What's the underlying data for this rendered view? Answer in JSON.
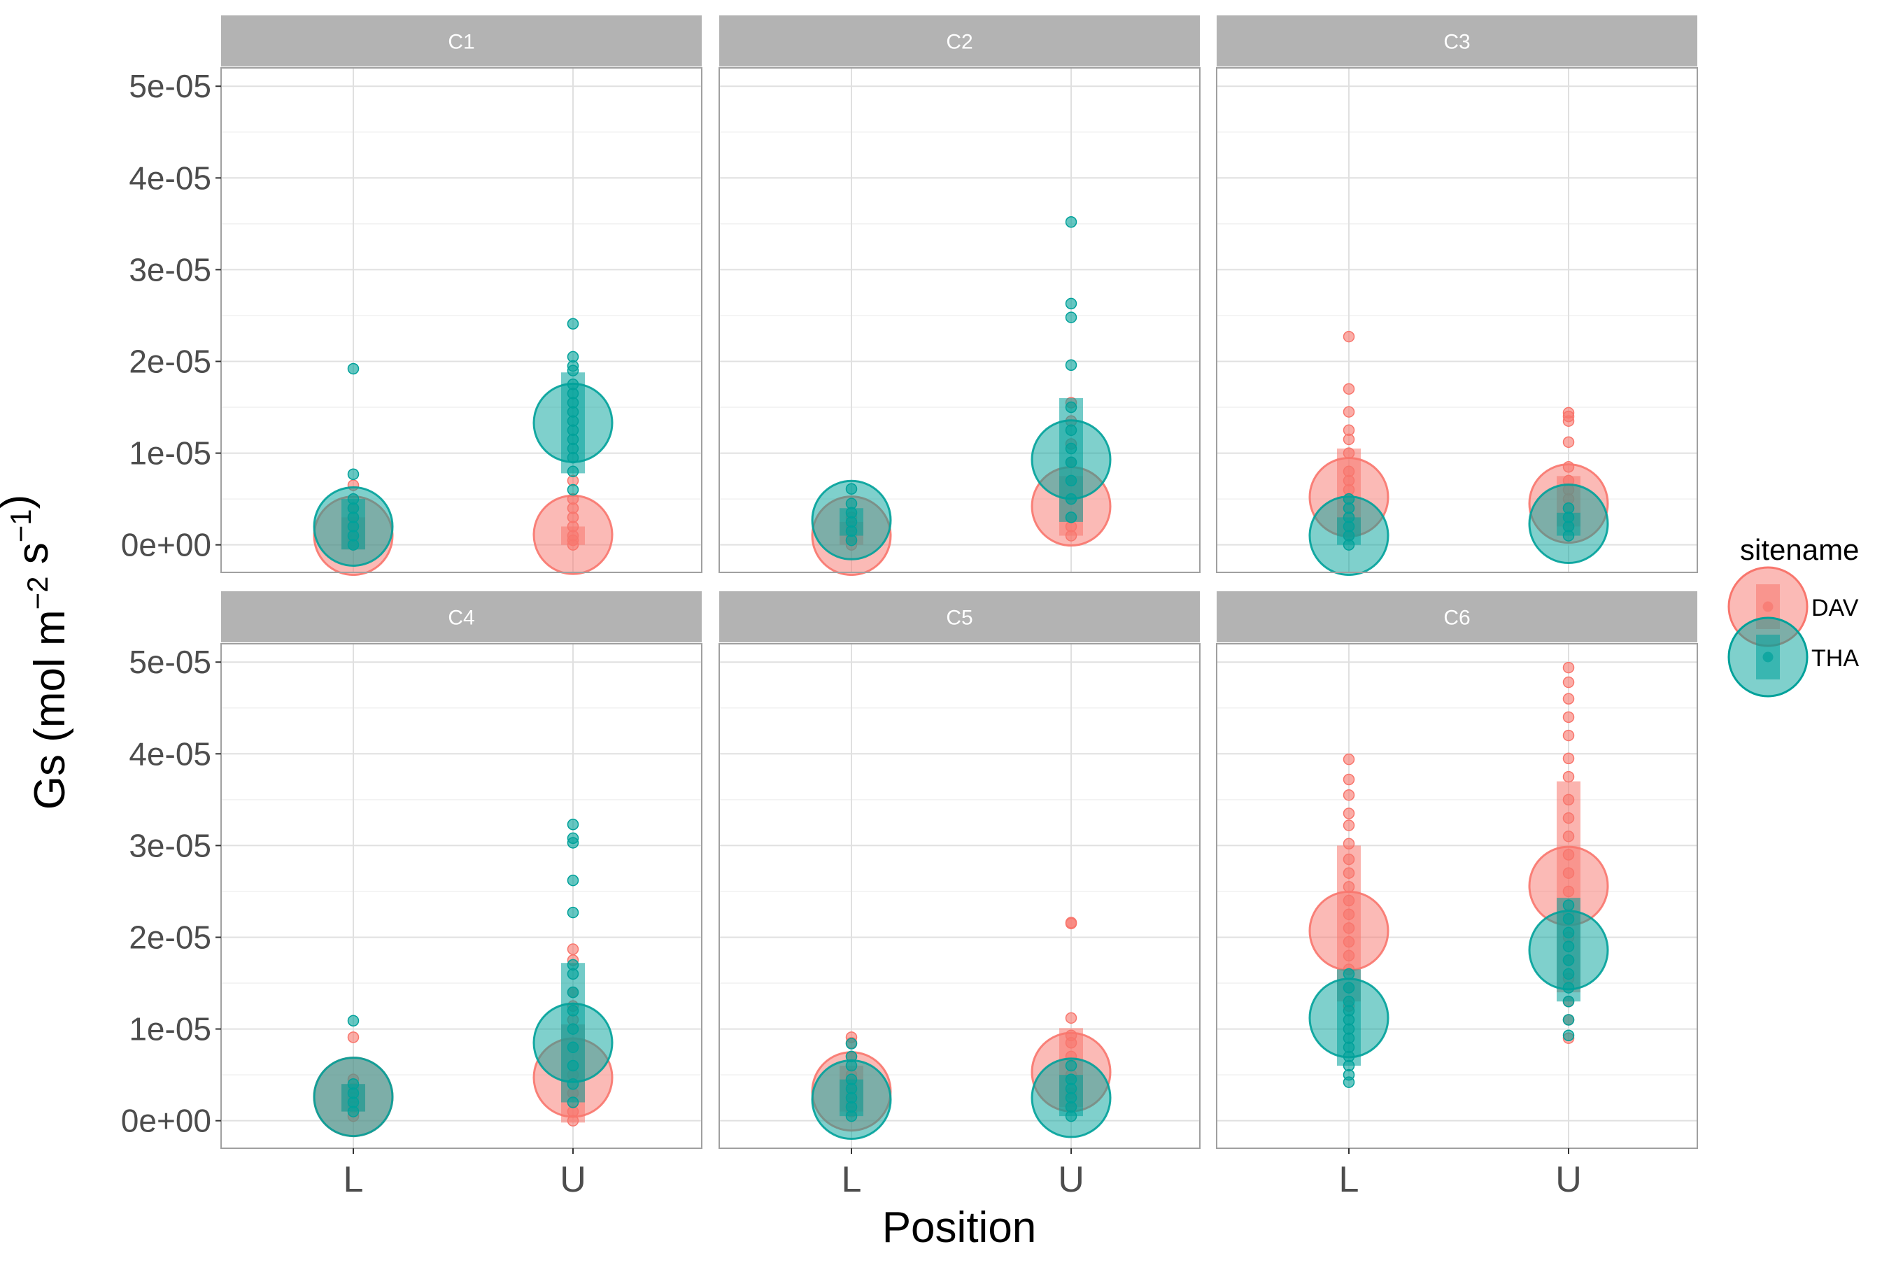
{
  "chart_data": {
    "type": "scatter",
    "facet_by": "panel",
    "panels": [
      "C1",
      "C2",
      "C3",
      "C4",
      "C5",
      "C6"
    ],
    "categories": [
      "L",
      "U"
    ],
    "xlabel": "Position",
    "ylabel": {
      "base": "Gs (mol m",
      "sup1": "−2",
      "mid": " s",
      "sup2": "−1",
      "end": ")"
    },
    "yticks": [
      0,
      1e-05,
      2e-05,
      3e-05,
      4e-05,
      5e-05
    ],
    "ytick_labels": [
      "0e+00",
      "1e-05",
      "2e-05",
      "3e-05",
      "4e-05",
      "5e-05"
    ],
    "ylim": [
      -3e-06,
      5.2e-05
    ],
    "grid": true,
    "legend": {
      "title": "sitename",
      "placement": "right",
      "entries": [
        "DAV",
        "THA"
      ]
    },
    "colors": {
      "DAV": "#F8766D",
      "THA": "#00A19A",
      "strip": "#b3b3b3",
      "grid": "#e0e0e0",
      "border": "#a0a0a0"
    },
    "series": [
      {
        "name": "DAV",
        "panel": "C1",
        "x": "L",
        "mean": 1e-06,
        "bar_low": -5e-07,
        "bar_high": 3e-06,
        "points": [
          0,
          5e-07,
          1e-06,
          2e-06,
          3e-06,
          4e-06,
          6.5e-06
        ]
      },
      {
        "name": "THA",
        "panel": "C1",
        "x": "L",
        "mean": 2e-06,
        "bar_low": -5e-07,
        "bar_high": 5e-06,
        "points": [
          0,
          1e-06,
          2e-06,
          3e-06,
          4e-06,
          5e-06,
          7.7e-06,
          1.92e-05
        ]
      },
      {
        "name": "DAV",
        "panel": "C1",
        "x": "U",
        "mean": 1.1e-06,
        "bar_low": 0,
        "bar_high": 2e-06,
        "points": [
          0,
          5e-07,
          1e-06,
          2e-06,
          3e-06,
          4e-06,
          5e-06,
          7e-06
        ]
      },
      {
        "name": "THA",
        "panel": "C1",
        "x": "U",
        "mean": 1.33e-05,
        "bar_low": 7.8e-06,
        "bar_high": 1.88e-05,
        "points": [
          6e-06,
          8e-06,
          9.5e-06,
          1.05e-05,
          1.15e-05,
          1.25e-05,
          1.35e-05,
          1.45e-05,
          1.55e-05,
          1.65e-05,
          1.75e-05,
          1.9e-05,
          1.95e-05,
          2.05e-05,
          2.41e-05
        ]
      },
      {
        "name": "DAV",
        "panel": "C2",
        "x": "L",
        "mean": 1e-06,
        "bar_low": 0,
        "bar_high": 2.5e-06,
        "points": [
          0,
          5e-07,
          1e-06,
          2e-06,
          3e-06
        ]
      },
      {
        "name": "THA",
        "panel": "C2",
        "x": "L",
        "mean": 2.7e-06,
        "bar_low": 1e-06,
        "bar_high": 4e-06,
        "points": [
          5e-07,
          1.5e-06,
          2.5e-06,
          3.5e-06,
          4.5e-06,
          6.1e-06
        ]
      },
      {
        "name": "DAV",
        "panel": "C2",
        "x": "U",
        "mean": 4.2e-06,
        "bar_low": 1e-06,
        "bar_high": 7.5e-06,
        "points": [
          1e-06,
          2e-06,
          3e-06,
          5e-06,
          7e-06,
          9e-06,
          1.1e-05,
          1.35e-05,
          1.55e-05
        ]
      },
      {
        "name": "THA",
        "panel": "C2",
        "x": "U",
        "mean": 9.3e-06,
        "bar_low": 2.5e-06,
        "bar_high": 1.6e-05,
        "points": [
          3e-06,
          5e-06,
          7e-06,
          9e-06,
          1.05e-05,
          1.25e-05,
          1.5e-05,
          1.96e-05,
          2.48e-05,
          2.63e-05,
          3.52e-05
        ]
      },
      {
        "name": "DAV",
        "panel": "C3",
        "x": "L",
        "mean": 5.2e-06,
        "bar_low": 1e-06,
        "bar_high": 1.05e-05,
        "points": [
          1e-06,
          2e-06,
          3e-06,
          4e-06,
          5e-06,
          6e-06,
          7e-06,
          8e-06,
          1e-05,
          1.15e-05,
          1.25e-05,
          1.45e-05,
          1.7e-05,
          2.27e-05
        ]
      },
      {
        "name": "THA",
        "panel": "C3",
        "x": "L",
        "mean": 1e-06,
        "bar_low": 0,
        "bar_high": 3e-06,
        "points": [
          0,
          1e-06,
          2e-06,
          3e-06,
          4e-06,
          5e-06
        ]
      },
      {
        "name": "DAV",
        "panel": "C3",
        "x": "U",
        "mean": 4.5e-06,
        "bar_low": 2e-06,
        "bar_high": 7.5e-06,
        "points": [
          2e-06,
          3e-06,
          4e-06,
          5e-06,
          6e-06,
          7e-06,
          8.5e-06,
          1.12e-05,
          1.35e-05,
          1.4e-05,
          1.44e-05
        ]
      },
      {
        "name": "THA",
        "panel": "C3",
        "x": "U",
        "mean": 2.3e-06,
        "bar_low": 1e-06,
        "bar_high": 3.5e-06,
        "points": [
          1e-06,
          2e-06,
          3e-06,
          4e-06
        ]
      },
      {
        "name": "DAV",
        "panel": "C4",
        "x": "L",
        "mean": 2.6e-06,
        "bar_low": 1e-06,
        "bar_high": 4e-06,
        "points": [
          5e-07,
          1.5e-06,
          2.5e-06,
          3.5e-06,
          4.5e-06,
          9.1e-06
        ]
      },
      {
        "name": "THA",
        "panel": "C4",
        "x": "L",
        "mean": 2.6e-06,
        "bar_low": 1e-06,
        "bar_high": 4e-06,
        "points": [
          1e-06,
          2e-06,
          3e-06,
          4e-06,
          1.09e-05
        ]
      },
      {
        "name": "DAV",
        "panel": "C4",
        "x": "U",
        "mean": 4.7e-06,
        "bar_low": -2e-07,
        "bar_high": 1.05e-05,
        "points": [
          0,
          1e-06,
          3e-06,
          5e-06,
          8e-06,
          1.1e-05,
          1.25e-05,
          1.4e-05,
          1.75e-05,
          1.87e-05
        ]
      },
      {
        "name": "THA",
        "panel": "C4",
        "x": "U",
        "mean": 8.5e-06,
        "bar_low": 2e-06,
        "bar_high": 1.72e-05,
        "points": [
          2e-06,
          4e-06,
          6e-06,
          8e-06,
          1e-05,
          1.2e-05,
          1.4e-05,
          1.6e-05,
          1.7e-05,
          2.27e-05,
          2.62e-05,
          3.03e-05,
          3.08e-05,
          3.23e-05
        ]
      },
      {
        "name": "DAV",
        "panel": "C5",
        "x": "L",
        "mean": 3.2e-06,
        "bar_low": 1e-06,
        "bar_high": 6e-06,
        "points": [
          1e-06,
          2e-06,
          3e-06,
          4e-06,
          5e-06,
          7e-06,
          8.5e-06,
          9.1e-06
        ]
      },
      {
        "name": "THA",
        "panel": "C5",
        "x": "L",
        "mean": 2.3e-06,
        "bar_low": 5e-07,
        "bar_high": 4.5e-06,
        "points": [
          5e-07,
          1.5e-06,
          2.5e-06,
          3.5e-06,
          4.5e-06,
          6e-06,
          7e-06,
          8.4e-06
        ]
      },
      {
        "name": "DAV",
        "panel": "C5",
        "x": "U",
        "mean": 5.3e-06,
        "bar_low": 1.5e-06,
        "bar_high": 1.01e-05,
        "points": [
          1.5e-06,
          3e-06,
          5e-06,
          7e-06,
          8.5e-06,
          9.3e-06,
          1.12e-05,
          2.15e-05,
          2.16e-05
        ]
      },
      {
        "name": "THA",
        "panel": "C5",
        "x": "U",
        "mean": 2.5e-06,
        "bar_low": 5e-07,
        "bar_high": 5e-06,
        "points": [
          5e-07,
          1.5e-06,
          2.5e-06,
          3.5e-06,
          4.5e-06,
          6e-06
        ]
      },
      {
        "name": "DAV",
        "panel": "C6",
        "x": "L",
        "mean": 2.07e-05,
        "bar_low": 1.3e-05,
        "bar_high": 3e-05,
        "points": [
          1.25e-05,
          1.45e-05,
          1.65e-05,
          1.8e-05,
          1.95e-05,
          2.1e-05,
          2.25e-05,
          2.4e-05,
          2.55e-05,
          2.7e-05,
          2.85e-05,
          3.02e-05,
          3.22e-05,
          3.35e-05,
          3.55e-05,
          3.72e-05,
          3.94e-05
        ]
      },
      {
        "name": "THA",
        "panel": "C6",
        "x": "L",
        "mean": 1.12e-05,
        "bar_low": 6e-06,
        "bar_high": 1.65e-05,
        "points": [
          4.2e-06,
          5e-06,
          6e-06,
          7e-06,
          8e-06,
          9e-06,
          1e-05,
          1.1e-05,
          1.2e-05,
          1.3e-05,
          1.45e-05,
          1.6e-05
        ]
      },
      {
        "name": "DAV",
        "panel": "C6",
        "x": "U",
        "mean": 2.56e-05,
        "bar_low": 1.4e-05,
        "bar_high": 3.7e-05,
        "points": [
          9e-06,
          1.1e-05,
          1.3e-05,
          1.55e-05,
          1.75e-05,
          2e-05,
          2.25e-05,
          2.5e-05,
          2.7e-05,
          2.9e-05,
          3.1e-05,
          3.3e-05,
          3.5e-05,
          3.75e-05,
          3.95e-05,
          4.2e-05,
          4.4e-05,
          4.6e-05,
          4.78e-05,
          4.94e-05
        ]
      },
      {
        "name": "THA",
        "panel": "C6",
        "x": "U",
        "mean": 1.86e-05,
        "bar_low": 1.3e-05,
        "bar_high": 2.43e-05,
        "points": [
          9.3e-06,
          1.1e-05,
          1.3e-05,
          1.45e-05,
          1.6e-05,
          1.75e-05,
          1.9e-05,
          2.05e-05,
          2.2e-05,
          2.35e-05
        ]
      }
    ]
  }
}
